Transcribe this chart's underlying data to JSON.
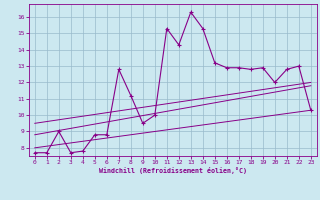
{
  "xlabel": "Windchill (Refroidissement éolien,°C)",
  "background_color": "#cce8f0",
  "line_color": "#880088",
  "grid_color": "#99bbcc",
  "xlim": [
    -0.5,
    23.5
  ],
  "ylim": [
    7.5,
    16.8
  ],
  "xticks": [
    0,
    1,
    2,
    3,
    4,
    5,
    6,
    7,
    8,
    9,
    10,
    11,
    12,
    13,
    14,
    15,
    16,
    17,
    18,
    19,
    20,
    21,
    22,
    23
  ],
  "yticks": [
    8,
    9,
    10,
    11,
    12,
    13,
    14,
    15,
    16
  ],
  "line1_x": [
    0,
    1,
    2,
    3,
    4,
    5,
    6,
    7,
    8,
    9,
    10,
    11,
    12,
    13,
    14,
    15,
    16,
    17,
    18,
    19,
    20,
    21,
    22,
    23
  ],
  "line1_y": [
    7.7,
    7.7,
    9.0,
    7.7,
    7.8,
    8.8,
    8.8,
    12.8,
    11.2,
    9.5,
    10.0,
    15.3,
    14.3,
    16.3,
    15.3,
    13.2,
    12.9,
    12.9,
    12.8,
    12.9,
    12.0,
    12.8,
    13.0,
    10.3
  ],
  "line2_x": [
    0,
    23
  ],
  "line2_y": [
    8.0,
    10.3
  ],
  "line3_x": [
    0,
    23
  ],
  "line3_y": [
    8.8,
    11.8
  ],
  "line4_x": [
    0,
    23
  ],
  "line4_y": [
    9.5,
    12.0
  ]
}
